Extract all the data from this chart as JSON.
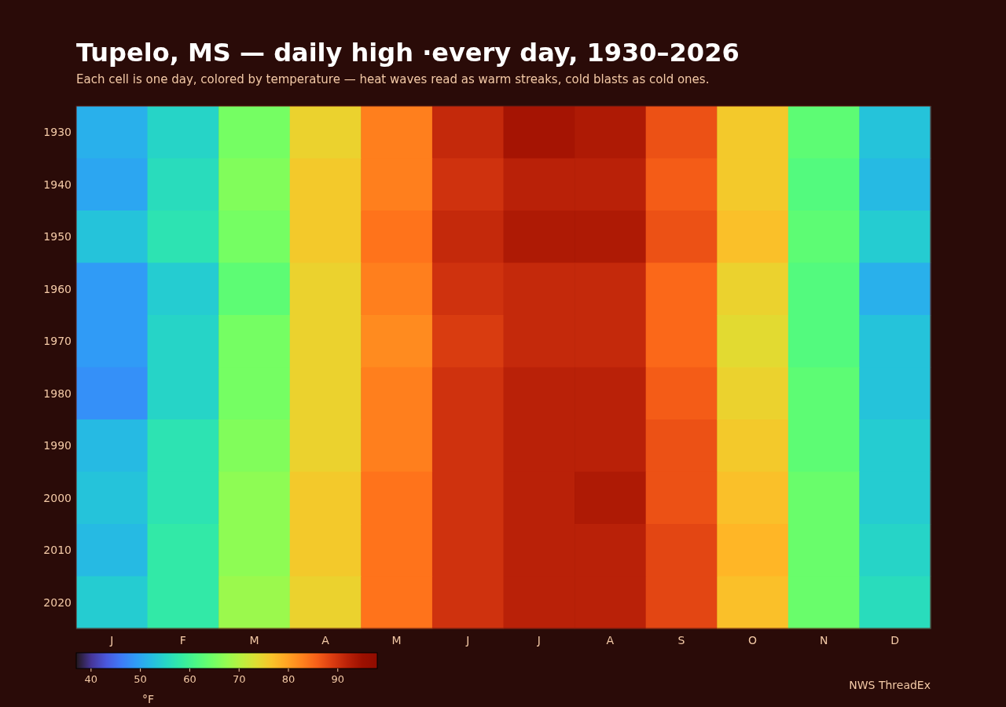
{
  "chart_data": {
    "type": "heatmap",
    "title": "Tupelo, MS — daily high ·every day, 1930–2026",
    "subtitle": "Each cell is one day, colored by temperature — heat waves read as warm streaks, cold blasts as cold ones.",
    "categories": [
      "J",
      "F",
      "M",
      "A",
      "M",
      "J",
      "J",
      "A",
      "S",
      "O",
      "N",
      "D"
    ],
    "y_categories": [
      "1930",
      "1940",
      "1950",
      "1960",
      "1970",
      "1980",
      "1990",
      "2000",
      "2010",
      "2020"
    ],
    "cells": [
      [
        51,
        55,
        65,
        75,
        83,
        91,
        94,
        93,
        87,
        76,
        63,
        53
      ],
      [
        50,
        56,
        66,
        76,
        83,
        90,
        92,
        92,
        86,
        76,
        62,
        52
      ],
      [
        53,
        57,
        65,
        76,
        84,
        91,
        93,
        93,
        87,
        77,
        63,
        54
      ],
      [
        49,
        54,
        63,
        75,
        83,
        90,
        91,
        91,
        85,
        75,
        62,
        51
      ],
      [
        49,
        55,
        65,
        75,
        82,
        89,
        91,
        91,
        85,
        74,
        62,
        53
      ],
      [
        48,
        55,
        65,
        75,
        83,
        90,
        92,
        92,
        86,
        75,
        63,
        53
      ],
      [
        52,
        57,
        66,
        75,
        83,
        90,
        92,
        92,
        87,
        76,
        63,
        54
      ],
      [
        53,
        57,
        67,
        76,
        84,
        90,
        92,
        93,
        87,
        77,
        64,
        54
      ],
      [
        52,
        58,
        67,
        76,
        84,
        90,
        92,
        92,
        88,
        78,
        64,
        55
      ],
      [
        54,
        58,
        68,
        75,
        84,
        90,
        92,
        92,
        88,
        77,
        64,
        56
      ]
    ],
    "clim": [
      37,
      98
    ],
    "cticks": [
      40,
      50,
      60,
      70,
      80,
      90
    ],
    "clabel": "°F",
    "annotations": [
      "NWS ThreadEx"
    ]
  }
}
